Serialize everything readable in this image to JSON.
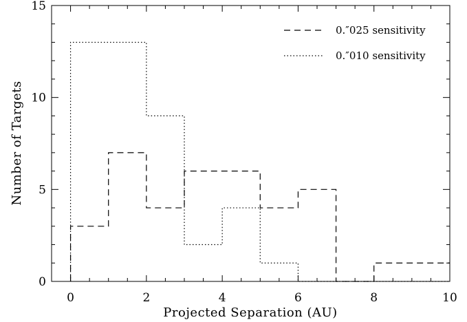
{
  "chart_data": {
    "type": "bar",
    "histogram": true,
    "xlabel": "Projected Separation (AU)",
    "ylabel": "Number of Targets",
    "xlim": [
      -0.5,
      10
    ],
    "ylim": [
      0,
      15
    ],
    "grid": false,
    "legend_placement": "top-right",
    "x_ticks": [
      {
        "value": 0,
        "label": "0"
      },
      {
        "value": 2,
        "label": "2"
      },
      {
        "value": 4,
        "label": "4"
      },
      {
        "value": 6,
        "label": "6"
      },
      {
        "value": 8,
        "label": "8"
      },
      {
        "value": 10,
        "label": "10"
      }
    ],
    "y_ticks": [
      {
        "value": 0,
        "label": "0"
      },
      {
        "value": 5,
        "label": "5"
      },
      {
        "value": 10,
        "label": "10"
      },
      {
        "value": 15,
        "label": "15"
      }
    ],
    "bin_edges": [
      0,
      1,
      2,
      3,
      4,
      5,
      6,
      7,
      8,
      9,
      10
    ],
    "series": [
      {
        "name": "0.″025 sensitivity",
        "line_style": "dashed",
        "values": [
          3,
          7,
          4,
          6,
          6,
          4,
          5,
          0,
          1,
          1
        ]
      },
      {
        "name": "0.″010 sensitivity",
        "line_style": "dotted",
        "values": [
          13,
          13,
          9,
          2,
          4,
          1,
          0,
          0,
          0,
          0
        ]
      }
    ]
  },
  "colors": {
    "line": "#000000",
    "background": "#ffffff"
  }
}
